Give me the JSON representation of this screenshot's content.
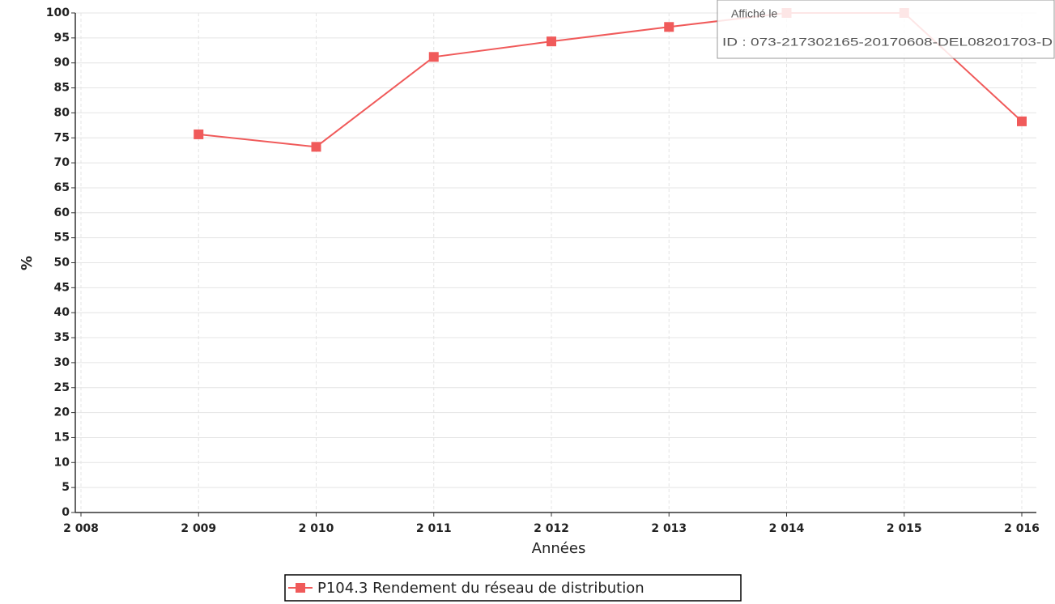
{
  "chart_data": {
    "type": "line",
    "x": [
      2009,
      2010,
      2011,
      2012,
      2013,
      2014,
      2015,
      2016
    ],
    "series": [
      {
        "name": "P104.3 Rendement du réseau de distribution",
        "color": "#f05a5a",
        "values": [
          75.7,
          73.2,
          91.2,
          94.3,
          97.2,
          100,
          100,
          78.3
        ]
      }
    ],
    "xlabel": "Années",
    "ylabel": "%",
    "xlim": [
      2008,
      2016
    ],
    "xticks": [
      {
        "value": 2008,
        "label": "2 008"
      },
      {
        "value": 2009,
        "label": "2 009"
      },
      {
        "value": 2010,
        "label": "2 010"
      },
      {
        "value": 2011,
        "label": "2 011"
      },
      {
        "value": 2012,
        "label": "2 012"
      },
      {
        "value": 2013,
        "label": "2 013"
      },
      {
        "value": 2014,
        "label": "2 014"
      },
      {
        "value": 2015,
        "label": "2 015"
      },
      {
        "value": 2016,
        "label": "2 016"
      }
    ],
    "ylim": [
      0,
      100
    ],
    "yticks": [
      0,
      5,
      10,
      15,
      20,
      25,
      30,
      35,
      40,
      45,
      50,
      55,
      60,
      65,
      70,
      75,
      80,
      85,
      90,
      95,
      100
    ],
    "grid": true,
    "legend": "bottom",
    "annotations": [
      "Affiché le",
      "ID : 073-217302165-20170608-DEL08201703-D"
    ]
  }
}
